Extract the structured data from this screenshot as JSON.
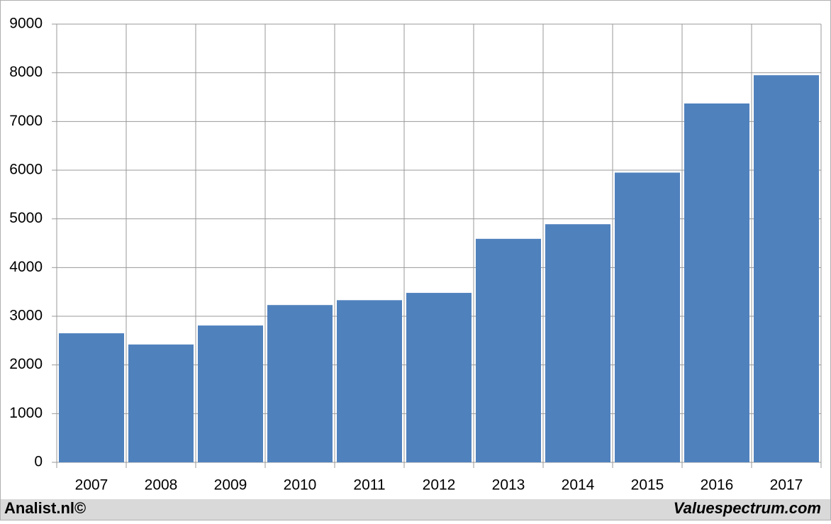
{
  "chart_data": {
    "type": "bar",
    "categories": [
      "2007",
      "2008",
      "2009",
      "2010",
      "2011",
      "2012",
      "2013",
      "2014",
      "2015",
      "2016",
      "2017"
    ],
    "values": [
      2650,
      2420,
      2810,
      3230,
      3330,
      3480,
      4590,
      4890,
      5950,
      7370,
      7950
    ],
    "color": "#4f81bd",
    "ylim": [
      0,
      9000
    ],
    "yticks": [
      0,
      1000,
      2000,
      3000,
      4000,
      5000,
      6000,
      7000,
      8000,
      9000
    ],
    "grid": true,
    "footer_left": "Analist.nl©",
    "footer_right": "Valuespectrum.com"
  }
}
